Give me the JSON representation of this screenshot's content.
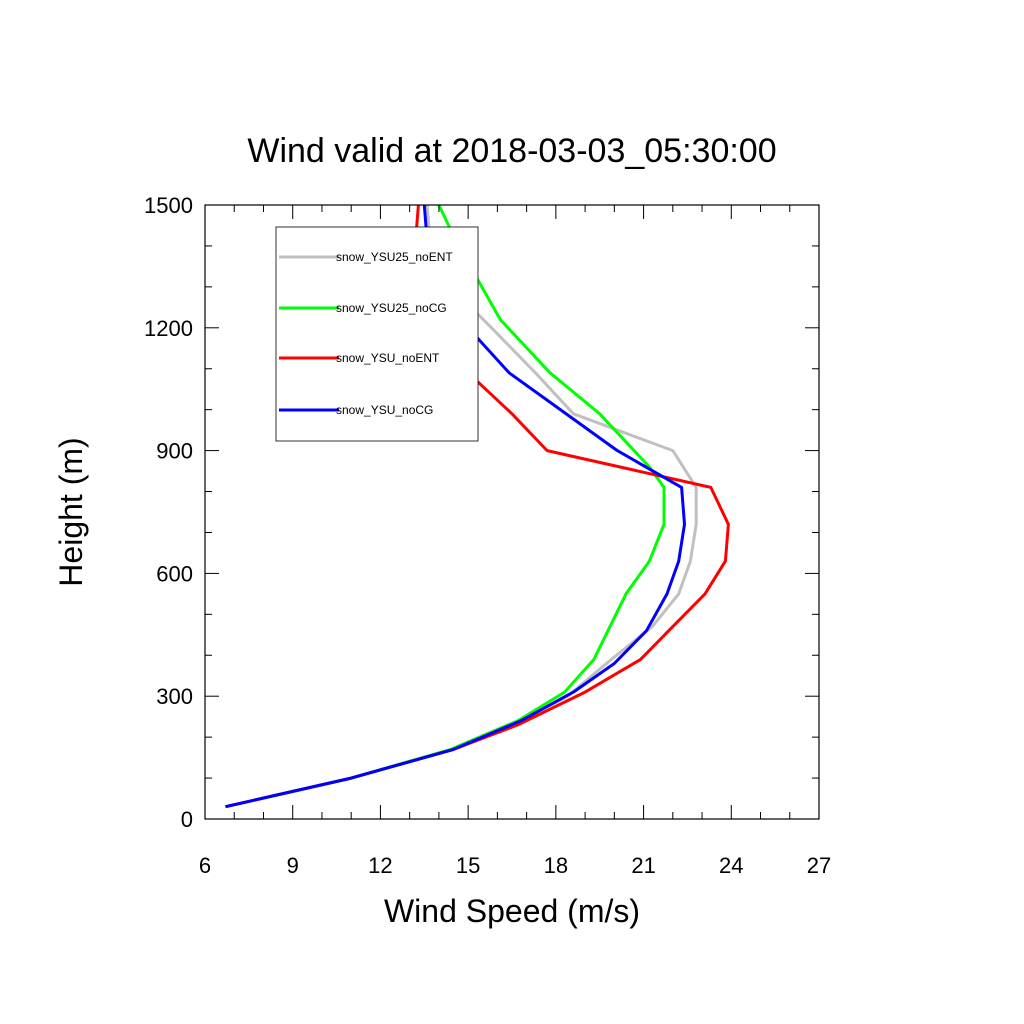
{
  "chart_data": {
    "type": "line",
    "title": "Wind valid at 2018-03-03_05:30:00",
    "xlabel": "Wind Speed (m/s)",
    "ylabel": "Height (m)",
    "xlim": [
      6,
      27
    ],
    "ylim": [
      0,
      1500
    ],
    "xticks": [
      6,
      9,
      12,
      15,
      18,
      21,
      24,
      27
    ],
    "yticks": [
      0,
      300,
      600,
      900,
      1200,
      1500
    ],
    "x_minor_step": 1,
    "y_minor_step": 100,
    "grid": false,
    "legend_position": "top-left",
    "series": [
      {
        "name": "snow_YSU25_noENT",
        "color": "#c0c0c0",
        "x": [
          6.7,
          11.0,
          14.5,
          16.8,
          18.4,
          19.9,
          21.3,
          22.2,
          22.6,
          22.8,
          22.8,
          22.0,
          18.6,
          17.3,
          15.8,
          14.4,
          13.7,
          13.6
        ],
        "y": [
          30,
          100,
          170,
          240,
          300,
          390,
          470,
          550,
          630,
          720,
          810,
          900,
          990,
          1090,
          1200,
          1300,
          1400,
          1500
        ]
      },
      {
        "name": "snow_YSU25_noCG",
        "color": "#00ff00",
        "x": [
          6.7,
          11.0,
          14.4,
          16.7,
          18.3,
          19.3,
          20.4,
          21.2,
          21.7,
          21.7,
          21.2,
          19.5,
          17.8,
          16.1,
          14.6,
          14.0
        ],
        "y": [
          30,
          100,
          170,
          240,
          310,
          390,
          550,
          630,
          720,
          810,
          860,
          990,
          1090,
          1220,
          1410,
          1500
        ]
      },
      {
        "name": "snow_YSU_noENT",
        "color": "#ff0000",
        "x": [
          6.7,
          11.0,
          14.5,
          16.7,
          19.0,
          20.9,
          22.0,
          23.1,
          23.8,
          23.9,
          23.3,
          17.7,
          16.5,
          15.0,
          13.3,
          12.9,
          13.2,
          13.3
        ],
        "y": [
          30,
          100,
          170,
          230,
          310,
          390,
          470,
          550,
          630,
          720,
          810,
          900,
          990,
          1090,
          1190,
          1300,
          1410,
          1500
        ]
      },
      {
        "name": "snow_YSU_noCG",
        "color": "#0000ff",
        "x": [
          6.7,
          11.0,
          14.5,
          16.8,
          18.6,
          20.0,
          21.1,
          21.8,
          22.2,
          22.4,
          22.3,
          20.1,
          16.4,
          15.0,
          14.1,
          13.6,
          13.5
        ],
        "y": [
          30,
          100,
          170,
          240,
          310,
          380,
          460,
          550,
          630,
          720,
          810,
          900,
          1090,
          1200,
          1300,
          1410,
          1500
        ]
      }
    ]
  }
}
